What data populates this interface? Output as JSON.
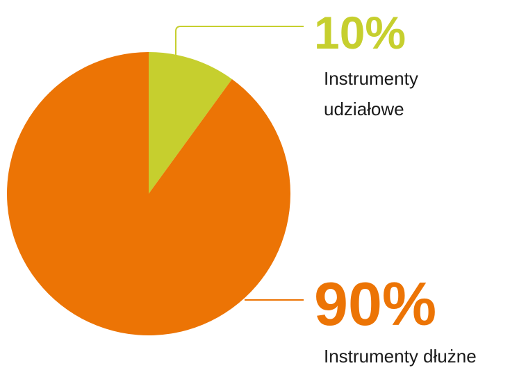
{
  "chart_data": {
    "type": "pie",
    "start_angle_deg": 0,
    "direction": "clockwise",
    "slices": [
      {
        "label_lines": [
          "Instrumenty",
          "udziałowe"
        ],
        "value": 10,
        "percent_label": "10%",
        "color": "#c6cf2e"
      },
      {
        "label_lines": [
          "Instrumenty dłużne"
        ],
        "value": 90,
        "percent_label": "90%",
        "color": "#ec7405"
      }
    ]
  }
}
